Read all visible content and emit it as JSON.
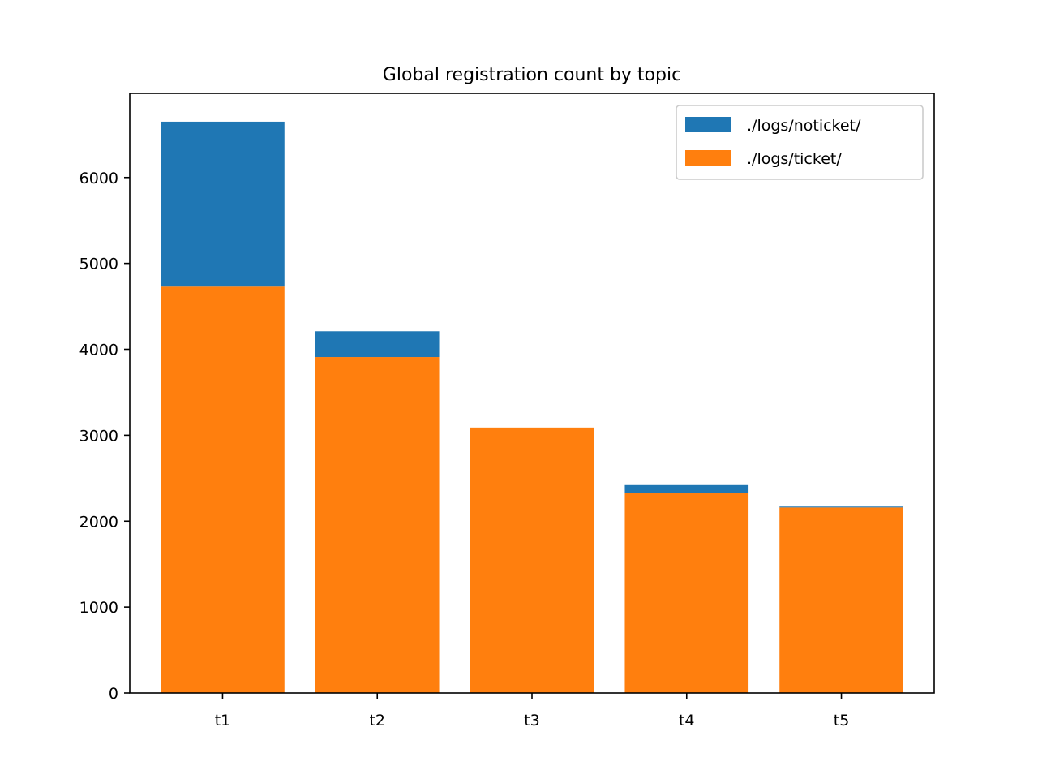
{
  "chart_data": {
    "type": "bar",
    "stacked": true,
    "title": "Global registration count by topic",
    "xlabel": "",
    "ylabel": "",
    "categories": [
      "t1",
      "t2",
      "t3",
      "t4",
      "t5"
    ],
    "series": [
      {
        "name": "./logs/ticket/",
        "color": "#ff7f0e",
        "values": [
          4730,
          3910,
          3090,
          2330,
          2160
        ]
      },
      {
        "name": "./logs/noticket/",
        "color": "#1f77b4",
        "values": [
          1920,
          300,
          0,
          90,
          10
        ]
      }
    ],
    "ylim": [
      0,
      6980
    ],
    "yticks": [
      0,
      1000,
      2000,
      3000,
      4000,
      5000,
      6000
    ],
    "legend": {
      "position": "top-right",
      "order": [
        "./logs/noticket/",
        "./logs/ticket/"
      ]
    },
    "grid": false
  }
}
